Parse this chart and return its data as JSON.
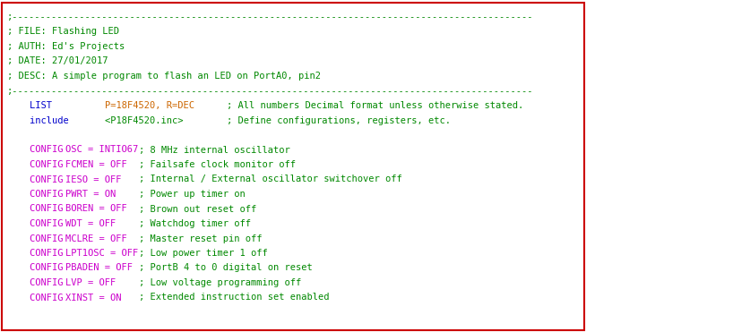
{
  "bg_color": "#ffffff",
  "border_color": "#cc0000",
  "dashed_line_color": "#008800",
  "comment_color": "#008800",
  "keyword_color": "#cc00cc",
  "directive_color": "#0000cc",
  "value_color": "#cc6600",
  "comment_inline_color": "#008800",
  "lines": [
    {
      "type": "dashed"
    },
    {
      "type": "comment",
      "text": "; FILE: Flashing LED"
    },
    {
      "type": "comment",
      "text": "; AUTH: Ed's Projects"
    },
    {
      "type": "comment",
      "text": "; DATE: 27/01/2017"
    },
    {
      "type": "comment",
      "text": "; DESC: A simple program to flash an LED on PortA0, pin2"
    },
    {
      "type": "dashed"
    },
    {
      "type": "parts_line",
      "parts": [
        {
          "text": "    LIST            ",
          "color": "#0000cc"
        },
        {
          "text": "P=18F4520, R=DEC         ",
          "color": "#cc6600"
        },
        {
          "text": "; All numbers Decimal format unless otherwise stated.",
          "color": "#008800"
        }
      ]
    },
    {
      "type": "parts_line",
      "parts": [
        {
          "text": "    include         ",
          "color": "#0000cc"
        },
        {
          "text": "<P18F4520.inc>           ",
          "color": "#008800"
        },
        {
          "text": "; Define configurations, registers, etc.",
          "color": "#008800"
        }
      ]
    },
    {
      "type": "blank"
    },
    {
      "type": "config_line",
      "setting": "OSC = INTIO67  ",
      "comment": "; 8 MHz internal oscillator"
    },
    {
      "type": "config_line",
      "setting": "FCMEN = OFF    ",
      "comment": "; Failsafe clock monitor off"
    },
    {
      "type": "config_line",
      "setting": "IESO = OFF     ",
      "comment": "; Internal / External oscillator switchover off"
    },
    {
      "type": "config_line",
      "setting": "PWRT = ON      ",
      "comment": "; Power up timer on"
    },
    {
      "type": "config_line",
      "setting": "BOREN = OFF    ",
      "comment": "; Brown out reset off"
    },
    {
      "type": "config_line",
      "setting": "WDT = OFF      ",
      "comment": "; Watchdog timer off"
    },
    {
      "type": "config_line",
      "setting": "MCLRE = OFF    ",
      "comment": "; Master reset pin off"
    },
    {
      "type": "config_line",
      "setting": "LPT1OSC = OFF  ",
      "comment": "; Low power timer 1 off"
    },
    {
      "type": "config_line",
      "setting": "PBADEN = OFF   ",
      "comment": "; PortB 4 to 0 digital on reset"
    },
    {
      "type": "config_line",
      "setting": "LVP = OFF      ",
      "comment": "; Low voltage programming off"
    },
    {
      "type": "config_line",
      "setting": "XINST = ON     ",
      "comment": "; Extended instruction set enabled"
    }
  ]
}
